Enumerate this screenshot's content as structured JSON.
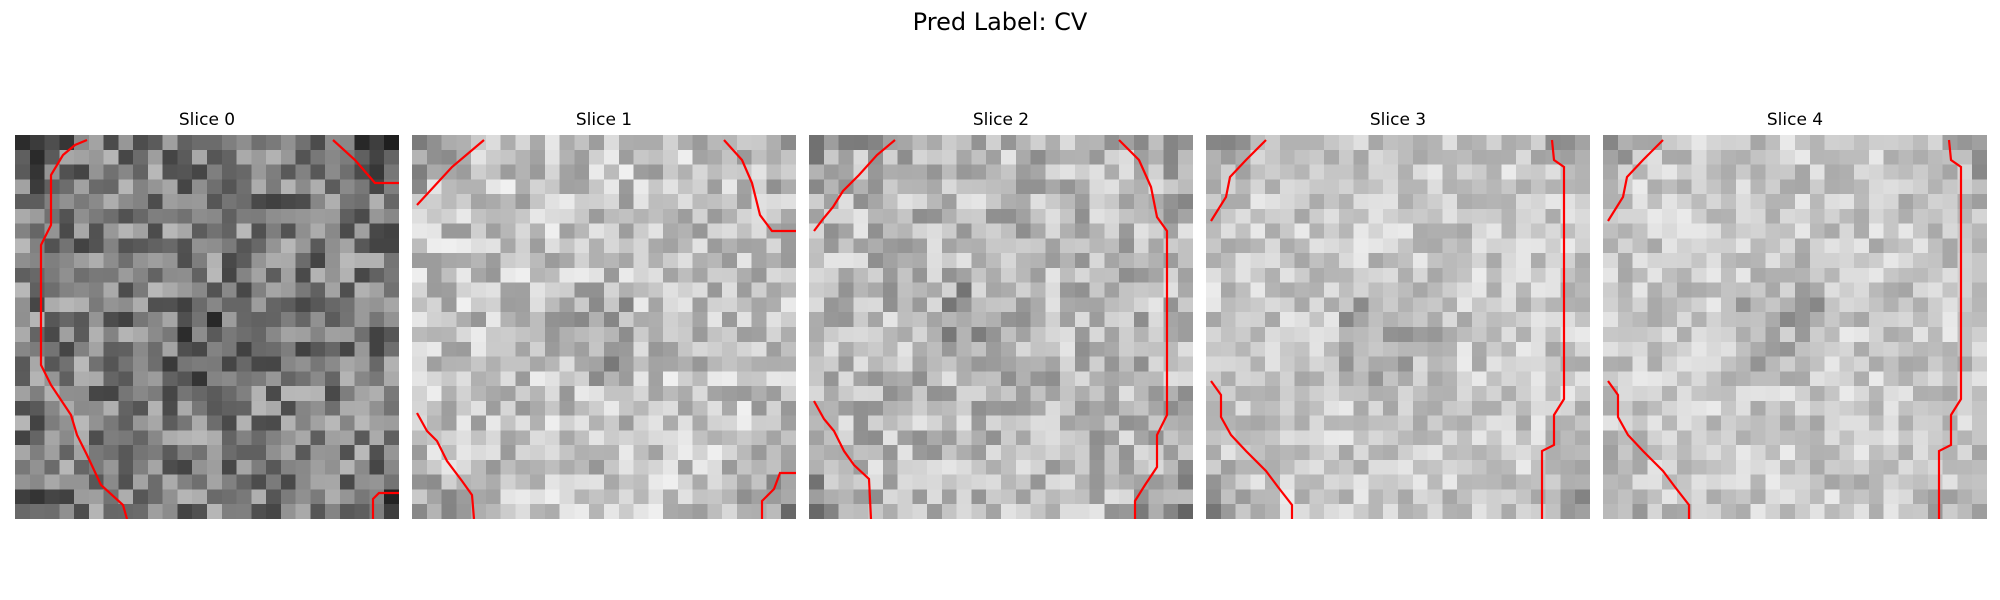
{
  "figure": {
    "title": "Pred Label: CV"
  },
  "colors": {
    "contour": "#ff0000",
    "colormap": "grayscale"
  },
  "slices": [
    {
      "title": "Slice 0",
      "seed": 11,
      "base": 125,
      "contrast": 60
    },
    {
      "title": "Slice 1",
      "seed": 23,
      "base": 195,
      "contrast": 45
    },
    {
      "title": "Slice 2",
      "seed": 37,
      "base": 185,
      "contrast": 45
    },
    {
      "title": "Slice 3",
      "seed": 53,
      "base": 200,
      "contrast": 35
    },
    {
      "title": "Slice 4",
      "seed": 71,
      "base": 200,
      "contrast": 35
    }
  ]
}
